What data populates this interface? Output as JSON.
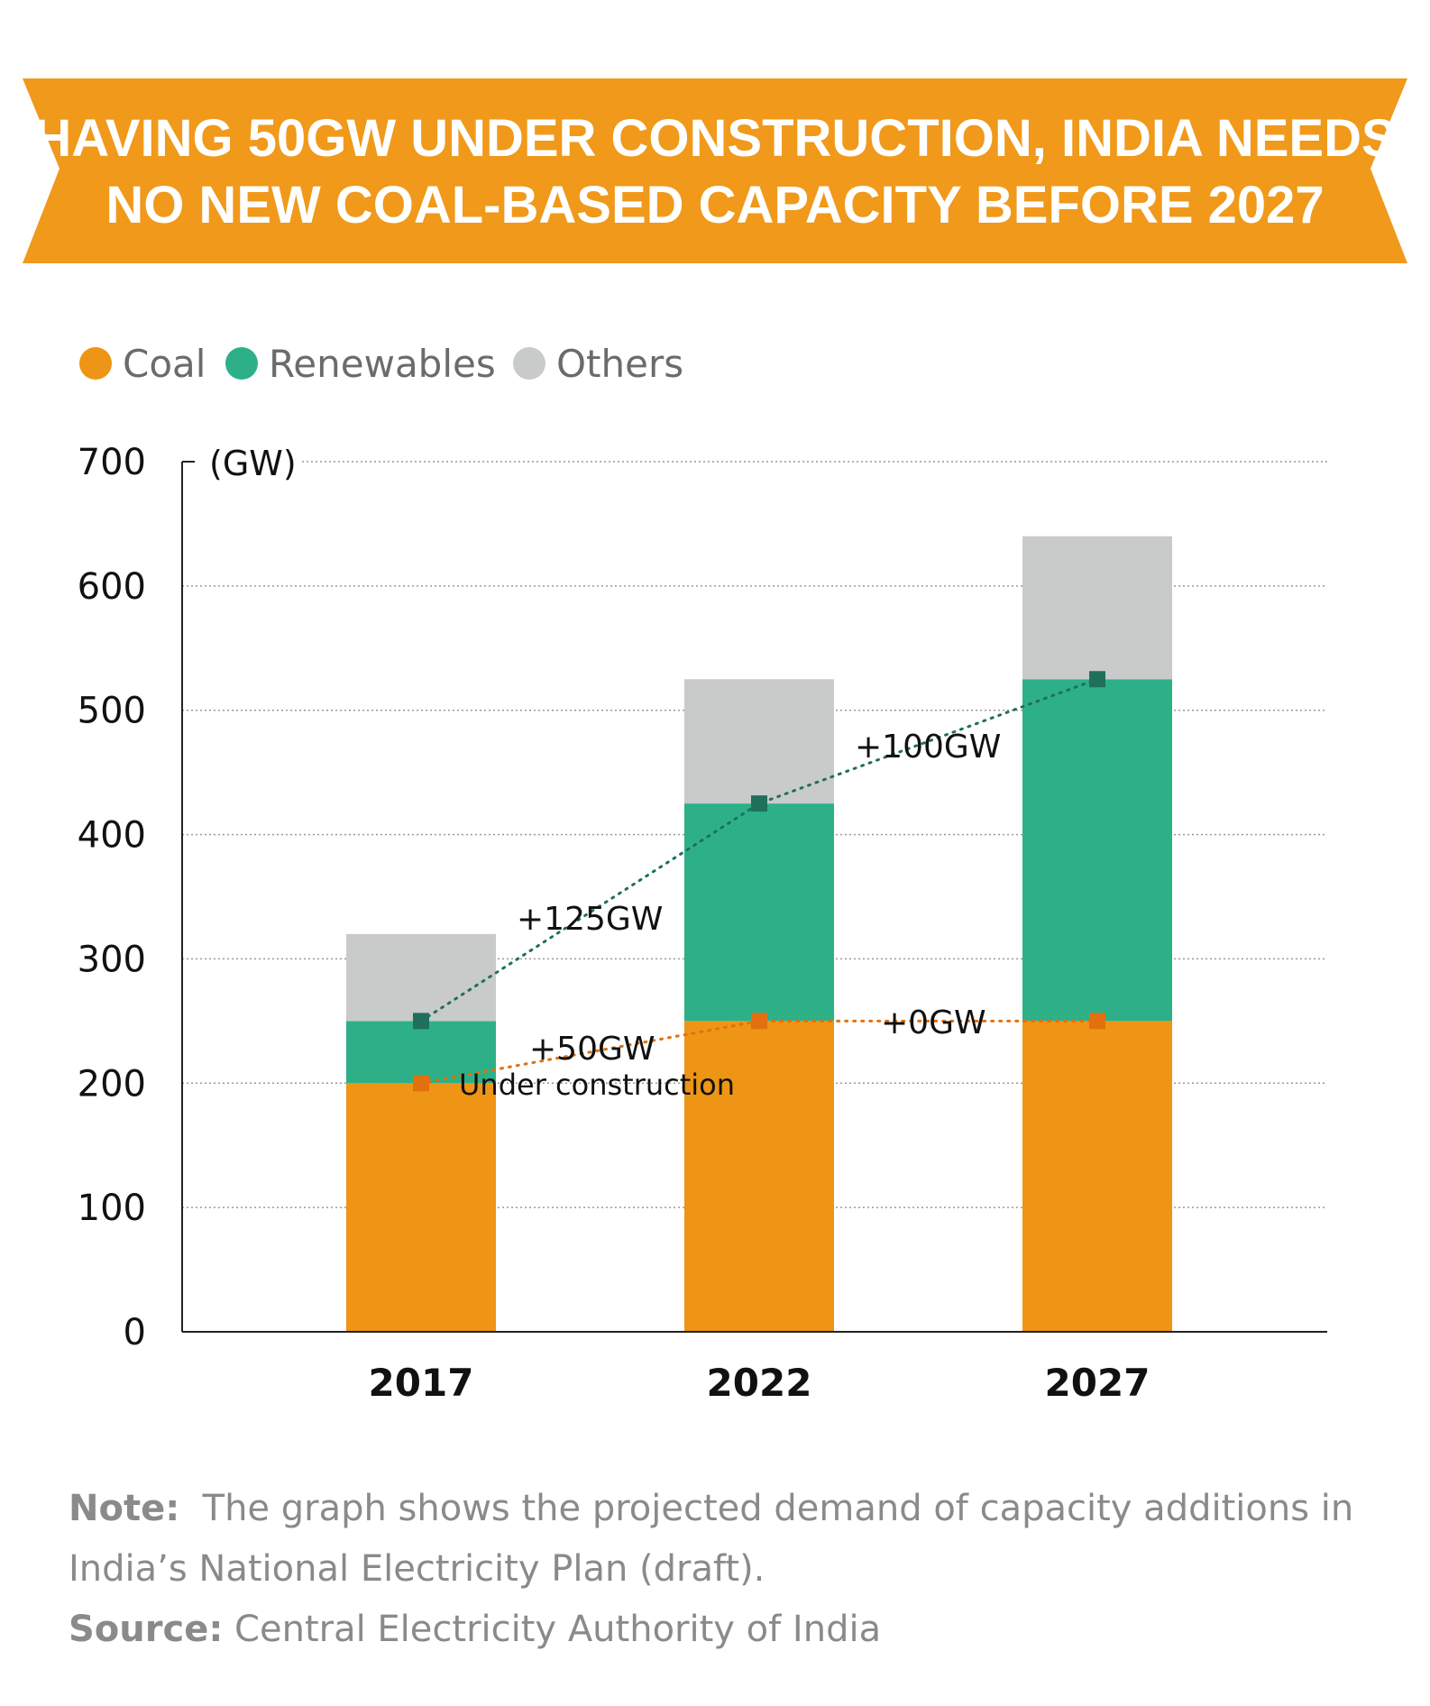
{
  "colors": {
    "banner": "#f0991a",
    "coal": "#ee9515",
    "renewables": "#2db087",
    "others": "#c9caca",
    "renewables_line": "#1f6f5d",
    "coal_line": "#e2700f",
    "grid": "#999999"
  },
  "banner": {
    "line1": "HAVING 50GW UNDER CONSTRUCTION, INDIA NEEDS",
    "line2": "NO NEW COAL-BASED CAPACITY BEFORE 2027"
  },
  "chart_data": {
    "type": "bar",
    "stacked": true,
    "categories": [
      "2017",
      "2022",
      "2027"
    ],
    "series": [
      {
        "name": "Coal",
        "values": [
          200,
          250,
          250
        ]
      },
      {
        "name": "Renewables",
        "values": [
          50,
          175,
          275
        ]
      },
      {
        "name": "Others",
        "values": [
          70,
          100,
          115
        ]
      }
    ],
    "ylim": [
      0,
      700
    ],
    "yticks": [
      "0",
      "100",
      "200",
      "300",
      "400",
      "500",
      "600",
      "700"
    ],
    "ylabel": "(GW)",
    "legend": [
      "Coal",
      "Renewables",
      "Others"
    ],
    "trend_lines": [
      {
        "name": "renewables-top",
        "values": [
          250,
          425,
          525
        ]
      },
      {
        "name": "coal-top",
        "values": [
          200,
          250,
          250
        ]
      }
    ],
    "annotations": {
      "ren_1": "+125GW",
      "ren_2": "+100GW",
      "coal_1": "+50GW",
      "coal_2": "+0GW",
      "under_construction": "Under construction"
    }
  },
  "note": {
    "label": "Note:",
    "text": "The graph shows the projected demand of capacity additions in India’s National Electricity Plan (draft)."
  },
  "source": {
    "label": "Source:",
    "text": "Central Electricity Authority of India"
  }
}
